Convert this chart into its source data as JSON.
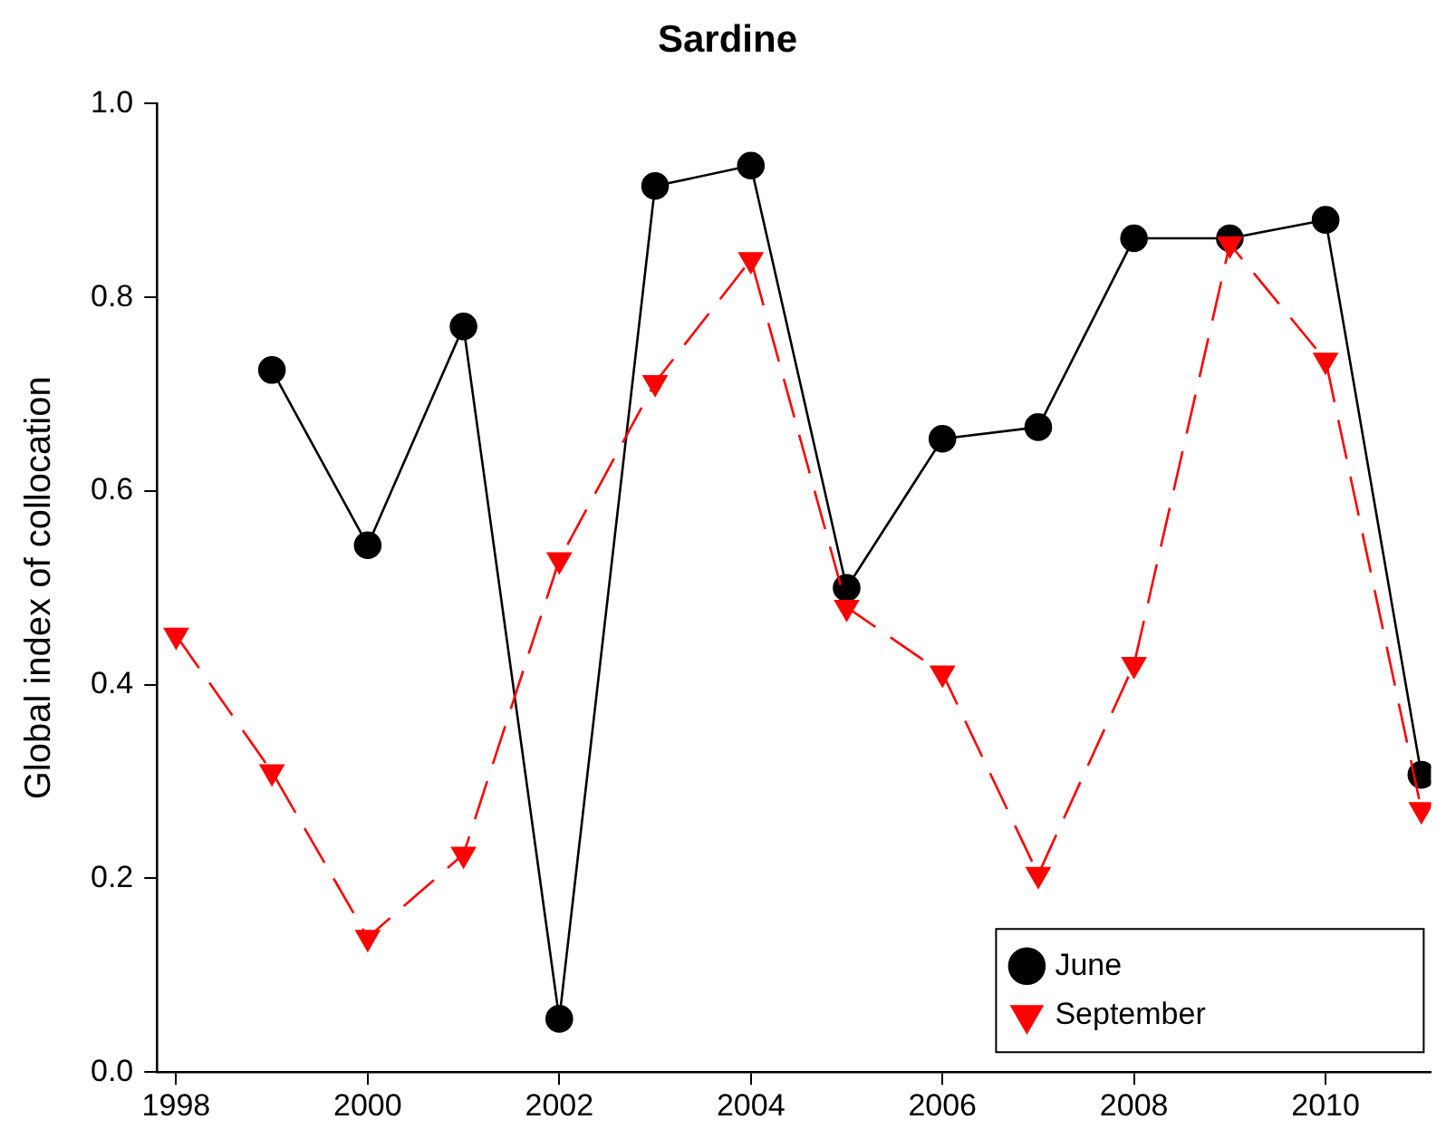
{
  "chart_data": {
    "type": "line",
    "title": "Sardine",
    "ylabel": "Global index of collocation",
    "xlim": [
      1997.8,
      2011.1
    ],
    "xticks": [
      1998,
      2000,
      2002,
      2004,
      2006,
      2008,
      2010
    ],
    "ylim": [
      0,
      1
    ],
    "yticks": [
      {
        "value": 0,
        "label": "0.0"
      },
      {
        "value": 0.2,
        "label": "0.2"
      },
      {
        "value": 0.4,
        "label": "0.4"
      },
      {
        "value": 0.6,
        "label": "0.6"
      },
      {
        "value": 0.8,
        "label": "0.8"
      },
      {
        "value": 1,
        "label": "1.0"
      }
    ],
    "grid": false,
    "legend": "bottom right",
    "series": [
      {
        "name": "June",
        "color": "#000000",
        "marker": "circle",
        "line_style": "solid",
        "x": [
          1999,
          2000,
          2001,
          2002,
          2003,
          2004,
          2005,
          2006,
          2007,
          2008,
          2009,
          2010,
          2011
        ],
        "values": [
          0.725,
          0.544,
          0.77,
          0.055,
          0.915,
          0.936,
          0.5,
          0.654,
          0.666,
          0.861,
          0.861,
          0.88,
          0.307
        ]
      },
      {
        "name": "September",
        "color": "#ff0000",
        "marker": "triangle",
        "line_style": "dashed",
        "x": [
          1998,
          1999,
          2000,
          2001,
          2002,
          2003,
          2004,
          2005,
          2006,
          2007,
          2008,
          2009,
          2010,
          2011
        ],
        "values": [
          0.451,
          0.31,
          0.139,
          0.225,
          0.529,
          0.712,
          0.839,
          0.48,
          0.412,
          0.204,
          0.421,
          0.855,
          0.735,
          0.271
        ]
      }
    ]
  }
}
